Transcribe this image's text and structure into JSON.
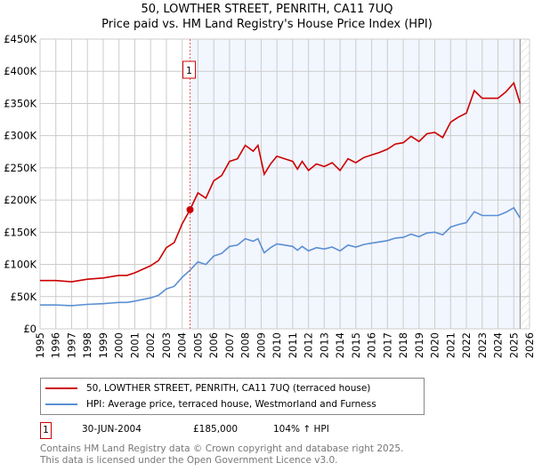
{
  "chart_data": {
    "type": "line",
    "title": "50, LOWTHER STREET, PENRITH, CA11 7UQ",
    "subtitle": "Price paid vs. HM Land Registry's House Price Index (HPI)",
    "xlim": [
      1995,
      2026
    ],
    "ylim": [
      0,
      450000
    ],
    "grid": true,
    "yticks": [
      {
        "v": 0,
        "label": "£0"
      },
      {
        "v": 50000,
        "label": "£50K"
      },
      {
        "v": 100000,
        "label": "£100K"
      },
      {
        "v": 150000,
        "label": "£150K"
      },
      {
        "v": 200000,
        "label": "£200K"
      },
      {
        "v": 250000,
        "label": "£250K"
      },
      {
        "v": 300000,
        "label": "£300K"
      },
      {
        "v": 350000,
        "label": "£350K"
      },
      {
        "v": 400000,
        "label": "£400K"
      },
      {
        "v": 450000,
        "label": "£450K"
      }
    ],
    "xticks": [
      "1995",
      "1996",
      "1997",
      "1998",
      "1999",
      "2000",
      "2001",
      "2002",
      "2003",
      "2004",
      "2005",
      "2006",
      "2007",
      "2008",
      "2009",
      "2010",
      "2011",
      "2012",
      "2013",
      "2014",
      "2015",
      "2016",
      "2017",
      "2018",
      "2019",
      "2020",
      "2021",
      "2022",
      "2023",
      "2024",
      "2025",
      "2026"
    ],
    "x": [
      1995,
      1996,
      1997,
      1998,
      1999,
      2000,
      2000.5,
      2001,
      2002,
      2002.5,
      2003,
      2003.5,
      2004,
      2004.5,
      2005,
      2005.5,
      2006,
      2006.5,
      2007,
      2007.5,
      2008,
      2008.5,
      2008.8,
      2009.2,
      2009.6,
      2010,
      2010.5,
      2011,
      2011.3,
      2011.6,
      2012,
      2012.5,
      2013,
      2013.5,
      2014,
      2014.5,
      2015,
      2015.5,
      2016,
      2016.5,
      2017,
      2017.5,
      2018,
      2018.5,
      2019,
      2019.5,
      2020,
      2020.5,
      2021,
      2021.5,
      2022,
      2022.5,
      2023,
      2023.5,
      2024,
      2024.5,
      2025,
      2025.4
    ],
    "series": [
      {
        "name": "50, LOWTHER STREET, PENRITH, CA11 7UQ (terraced house)",
        "color": "#cc0000",
        "values": [
          75,
          75,
          73,
          77,
          79,
          83,
          83,
          87,
          98,
          106,
          126,
          134,
          163,
          185,
          211,
          203,
          230,
          238,
          260,
          264,
          285,
          276,
          285,
          240,
          256,
          268,
          264,
          260,
          248,
          260,
          246,
          256,
          252,
          258,
          246,
          264,
          258,
          266,
          270,
          274,
          279,
          287,
          289,
          299,
          291,
          303,
          305,
          297,
          321,
          329,
          335,
          370,
          358,
          358,
          358,
          368,
          382,
          350
        ],
        "unit": "£K"
      },
      {
        "name": "HPI: Average price, terraced house, Westmorland and Furness",
        "color": "#5b8fd4",
        "values": [
          37,
          37,
          36,
          38,
          39,
          41,
          41,
          43,
          48,
          52,
          62,
          66,
          80,
          91,
          104,
          100,
          113,
          117,
          128,
          130,
          140,
          136,
          140,
          118,
          126,
          132,
          130,
          128,
          122,
          128,
          121,
          126,
          124,
          127,
          121,
          130,
          127,
          131,
          133,
          135,
          137,
          141,
          142,
          147,
          143,
          149,
          150,
          146,
          158,
          162,
          165,
          182,
          176,
          176,
          176,
          181,
          188,
          172
        ],
        "unit": "£K"
      }
    ],
    "annotations": [
      {
        "label": "1",
        "x": 2004.5,
        "y": 185000
      }
    ],
    "shade_from": 2004.5,
    "data_end": 2025.4
  },
  "sale": {
    "num": "1",
    "date": "30-JUN-2004",
    "price": "£185,000",
    "hpi": "104% ↑ HPI"
  },
  "footer": {
    "line1": "Contains HM Land Registry data © Crown copyright and database right 2025.",
    "line2": "This data is licensed under the Open Government Licence v3.0."
  }
}
